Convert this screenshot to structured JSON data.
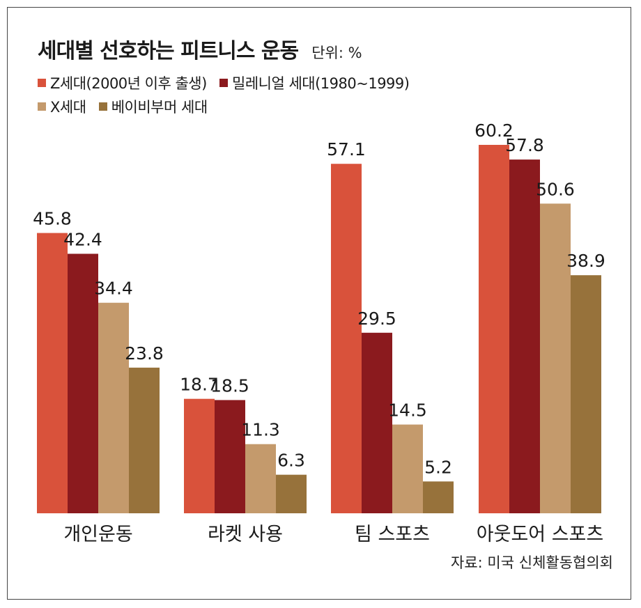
{
  "chart_data": {
    "type": "bar",
    "title": "세대별 선호하는 피트니스 운동",
    "unit_label": "단위: %",
    "categories": [
      "개인운동",
      "라켓 사용",
      "팀 스포츠",
      "아웃도어 스포츠"
    ],
    "series": [
      {
        "name": "Z세대(2000년 이후 출생)",
        "color": "#d9523b",
        "values": [
          45.8,
          18.7,
          57.1,
          60.2
        ]
      },
      {
        "name": "밀레니얼 세대(1980~1999)",
        "color": "#8b1a1e",
        "values": [
          42.4,
          18.5,
          29.5,
          57.8
        ]
      },
      {
        "name": "X세대",
        "color": "#c49a6c",
        "values": [
          34.4,
          11.3,
          14.5,
          50.6
        ]
      },
      {
        "name": "베이비부머 세대",
        "color": "#97723b",
        "values": [
          23.8,
          6.3,
          5.2,
          38.9
        ]
      }
    ],
    "ylim": [
      0,
      60.2
    ],
    "grid": false,
    "legend_position": "top-left",
    "source": "자료: 미국 신체활동협의회"
  }
}
